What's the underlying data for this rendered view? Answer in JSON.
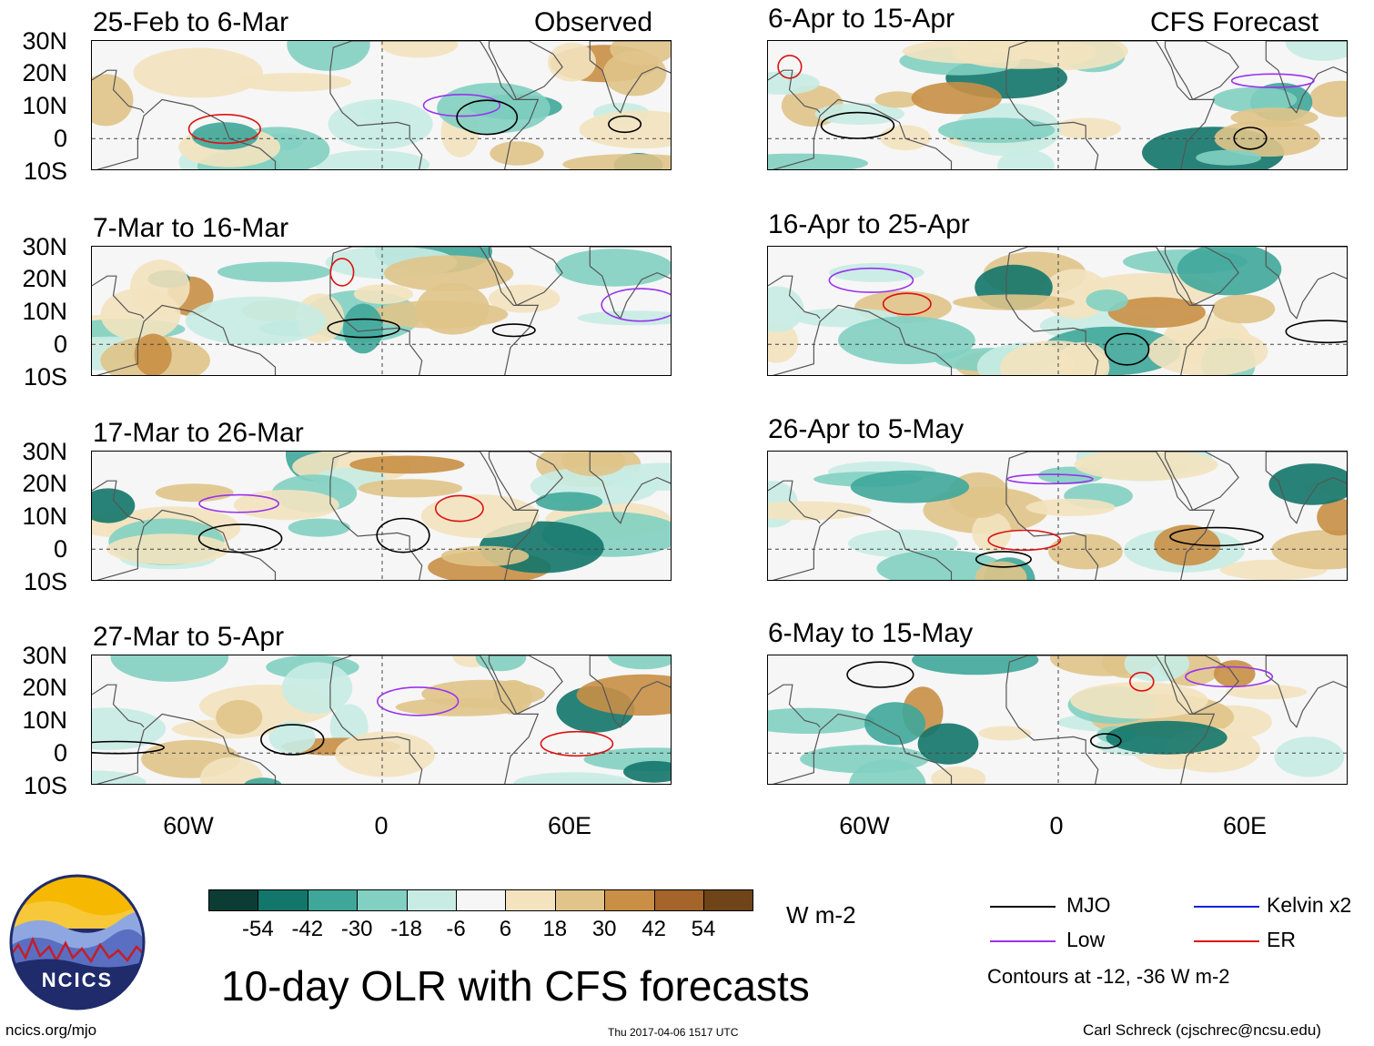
{
  "header": {
    "observed_label": "Observed",
    "forecast_label": "CFS Forecast"
  },
  "observed_panels": [
    {
      "title": "25-Feb to 6-Mar"
    },
    {
      "title": "7-Mar to 16-Mar"
    },
    {
      "title": "17-Mar to 26-Mar"
    },
    {
      "title": "27-Mar to 5-Apr"
    }
  ],
  "forecast_panels": [
    {
      "title": "6-Apr to 15-Apr"
    },
    {
      "title": "16-Apr to 25-Apr"
    },
    {
      "title": "26-Apr to 5-May"
    },
    {
      "title": "6-May to 15-May"
    }
  ],
  "axes": {
    "lat_labels": [
      "30N",
      "20N",
      "10N",
      "0",
      "10S"
    ],
    "lon_labels": [
      "60W",
      "0",
      "60E"
    ]
  },
  "colorbar": {
    "colors": [
      "#0b3d35",
      "#13766a",
      "#3fa79a",
      "#82d0c2",
      "#c8ece4",
      "#f6f6f6",
      "#f3e3bf",
      "#e0c489",
      "#c98f45",
      "#a4642a",
      "#6e4418"
    ],
    "ticks": [
      "-54",
      "-42",
      "-30",
      "-18",
      "-6",
      "6",
      "18",
      "30",
      "42",
      "54"
    ],
    "units": "W m-2"
  },
  "legend": {
    "items": [
      {
        "label": "MJO",
        "color": "#000000"
      },
      {
        "label": "Low",
        "color": "#9933ee"
      },
      {
        "label": "Kelvin x2",
        "color": "#1122dd"
      },
      {
        "label": "ER",
        "color": "#dd1111"
      }
    ],
    "note": "Contours at -12, -36 W m-2"
  },
  "logo": {
    "text": "NCICS"
  },
  "footer": {
    "title": "10-day OLR with CFS forecasts",
    "website": "ncics.org/mjo",
    "timestamp": "Thu 2017-04-06 1517 UTC",
    "author": "Carl Schreck (cjschrec@ncsu.edu)"
  }
}
